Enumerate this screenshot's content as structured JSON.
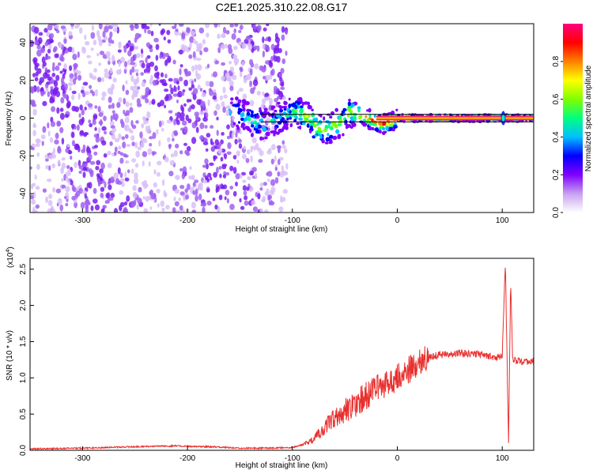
{
  "title": "C2E1.2025.310.22.08.G17",
  "chart_data": [
    {
      "type": "heatmap",
      "name": "spectrogram",
      "xlabel": "Height of straight line (km)",
      "ylabel": "Frequency (Hz)",
      "xlim": [
        -350,
        130
      ],
      "ylim": [
        -50,
        50
      ],
      "xticks": [
        -300,
        -200,
        -100,
        0,
        100
      ],
      "yticks": [
        -40,
        -20,
        0,
        20,
        40
      ],
      "xtick_labels": [
        "-300",
        "-200",
        "-100",
        "0",
        "100"
      ],
      "ytick_labels": [
        "-40",
        "-20",
        "0",
        "20",
        "40"
      ],
      "colorbar": {
        "label": "Normalized spectral amplitude",
        "range": [
          0,
          1
        ],
        "ticks": [
          0.0,
          0.2,
          0.4,
          0.6,
          0.8
        ],
        "tick_labels": [
          "0.0",
          "0.2",
          "0.4",
          "0.6",
          "0.8"
        ],
        "colormap": [
          "#ffffff",
          "#c8a0f0",
          "#8000ff",
          "#0000ff",
          "#00c0ff",
          "#00ff80",
          "#80ff00",
          "#ffff00",
          "#ff8000",
          "#ff0000",
          "#ff0080"
        ]
      },
      "regions": [
        {
          "desc": "noise",
          "x_range": [
            -350,
            -105
          ],
          "y_range": [
            -50,
            50
          ],
          "amplitude": [
            0.0,
            0.25
          ]
        },
        {
          "desc": "signal band",
          "x_range": [
            -160,
            130
          ],
          "y_center": 0,
          "amplitude": [
            0.2,
            1.0
          ]
        },
        {
          "desc": "carrier line",
          "x_range": [
            -20,
            130
          ],
          "y_center": 0,
          "amplitude": 1.0
        }
      ],
      "horizontal_lines": [
        -2,
        2
      ]
    },
    {
      "type": "line",
      "name": "snr",
      "xlabel": "Height of straight line (km)",
      "ylabel": "SNR (10 * v/v)",
      "multiplier_label": "(x10",
      "multiplier_exp": "4",
      "multiplier_close": ")",
      "xlim": [
        -350,
        130
      ],
      "ylim": [
        0,
        2.65
      ],
      "xticks": [
        -300,
        -200,
        -100,
        0,
        100
      ],
      "yticks": [
        0.0,
        0.5,
        1.0,
        1.5,
        2.0,
        2.5
      ],
      "xtick_labels": [
        "-300",
        "-200",
        "-100",
        "0",
        "100"
      ],
      "ytick_labels": [
        "0.0",
        "0.5",
        "1.0",
        "1.5",
        "2.0",
        "2.5"
      ],
      "color": "#e8302e",
      "series": [
        {
          "name": "SNR",
          "x": [
            -350,
            -300,
            -250,
            -210,
            -180,
            -150,
            -120,
            -100,
            -90,
            -80,
            -70,
            -60,
            -50,
            -40,
            -30,
            -20,
            -10,
            0,
            10,
            20,
            30,
            40,
            60,
            80,
            95,
            100,
            103,
            106,
            108,
            110,
            115,
            130
          ],
          "y": [
            0.02,
            0.03,
            0.05,
            0.06,
            0.05,
            0.03,
            0.03,
            0.04,
            0.08,
            0.15,
            0.3,
            0.45,
            0.55,
            0.65,
            0.75,
            0.85,
            0.92,
            1.0,
            1.1,
            1.2,
            1.28,
            1.32,
            1.34,
            1.33,
            1.28,
            1.3,
            2.6,
            0.05,
            2.35,
            1.25,
            1.23,
            1.22
          ]
        }
      ]
    }
  ]
}
